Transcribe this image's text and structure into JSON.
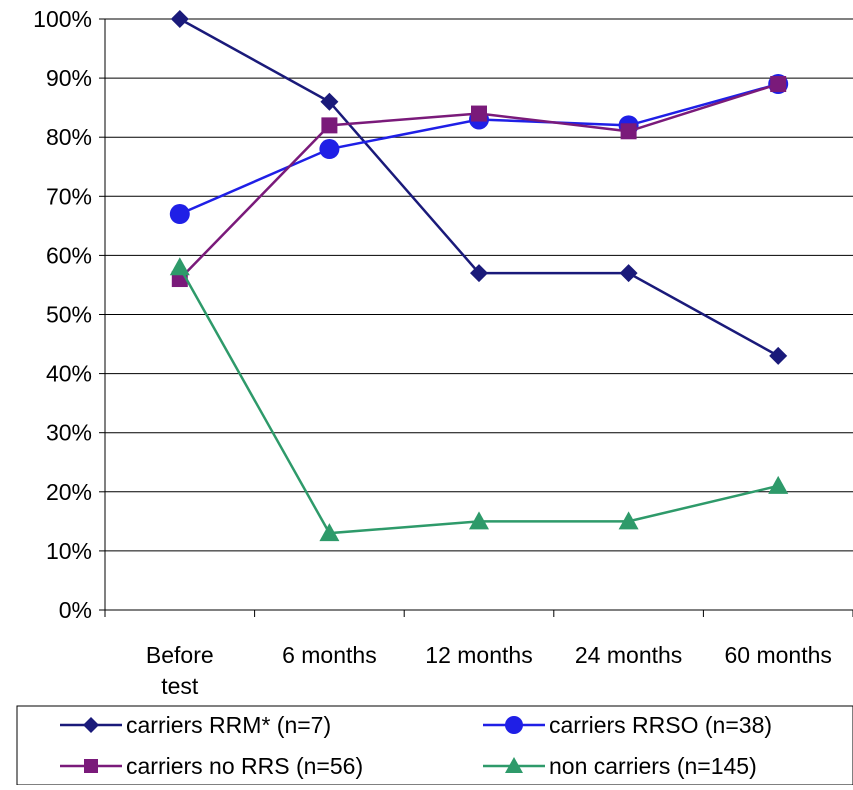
{
  "chart_data": {
    "type": "line",
    "title": "",
    "xlabel": "",
    "ylabel": "",
    "categories": [
      [
        "Before",
        "test"
      ],
      [
        "6 months"
      ],
      [
        "12 months"
      ],
      [
        "24 months"
      ],
      [
        "60 months"
      ]
    ],
    "ylim": [
      0,
      100
    ],
    "y_ticks": [
      "0%",
      "10%",
      "20%",
      "30%",
      "40%",
      "50%",
      "60%",
      "70%",
      "80%",
      "90%",
      "100%"
    ],
    "grid": true,
    "legend_position": "bottom",
    "series": [
      {
        "name": "carriers RRM* (n=7)",
        "marker": "diamond",
        "color": "#1a1a7a",
        "values": [
          100,
          86,
          57,
          57,
          43
        ]
      },
      {
        "name": "carriers RRSO (n=38)",
        "marker": "circle",
        "color": "#1f1fe6",
        "values": [
          67,
          78,
          83,
          82,
          89
        ]
      },
      {
        "name": "carriers no RRS (n=56)",
        "marker": "square",
        "color": "#7a1a7a",
        "values": [
          56,
          82,
          84,
          81,
          89
        ]
      },
      {
        "name": "non carriers (n=145)",
        "marker": "triangle",
        "color": "#2e9a6a",
        "values": [
          58,
          13,
          15,
          15,
          21
        ]
      }
    ]
  }
}
